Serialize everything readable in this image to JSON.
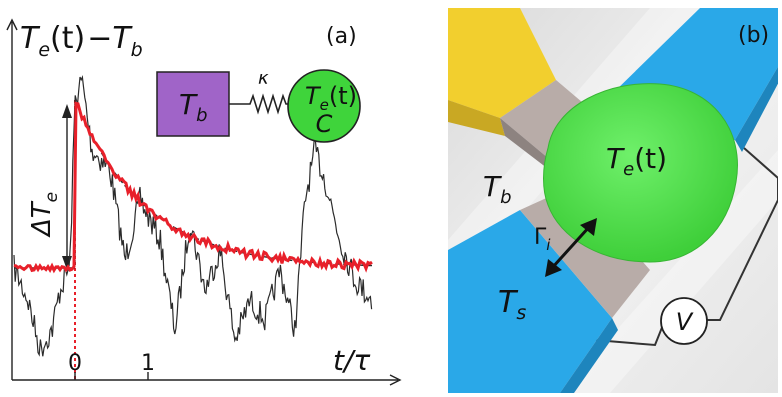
{
  "panel_a": {
    "panel_label": "(a)",
    "y_axis_label": {
      "lhs": "T",
      "lhs_sub": "e",
      "arg": "(t)",
      "minus": "−",
      "rhs": "T",
      "rhs_sub": "b"
    },
    "x_axis_label": "t/τ",
    "x_tick_labels": [
      "0",
      "1"
    ],
    "delta_label": {
      "main": "ΔT",
      "sub": "e"
    },
    "model": {
      "bath_label": {
        "main": "T",
        "sub": "b"
      },
      "coupling_label": "κ",
      "electron_label": {
        "main": "T",
        "sub": "e",
        "arg": "(t)"
      },
      "capacity_label": "C"
    },
    "colors": {
      "noisy_trace": "#2b2b2b",
      "averaged_trace": "#e8202a",
      "fit_curve": "#2b2b2b",
      "bath_box": "#a064c8",
      "electron_circle": "#3fd43b"
    }
  },
  "panel_b": {
    "panel_label": "(b)",
    "island_label": {
      "main": "T",
      "sub": "e",
      "arg": "(t)"
    },
    "bath_label": {
      "main": "T",
      "sub": "b"
    },
    "rate_label": {
      "main": "Γ",
      "sub": "i"
    },
    "probe_label": {
      "main": "T",
      "sub": "s"
    },
    "voltmeter_label": "V",
    "colors": {
      "lead_blue": "#2aa8e8",
      "lead_yellow": "#f2cf2e",
      "island_green": "#5fe05a",
      "junction_gray": "#b8aca8"
    }
  }
}
